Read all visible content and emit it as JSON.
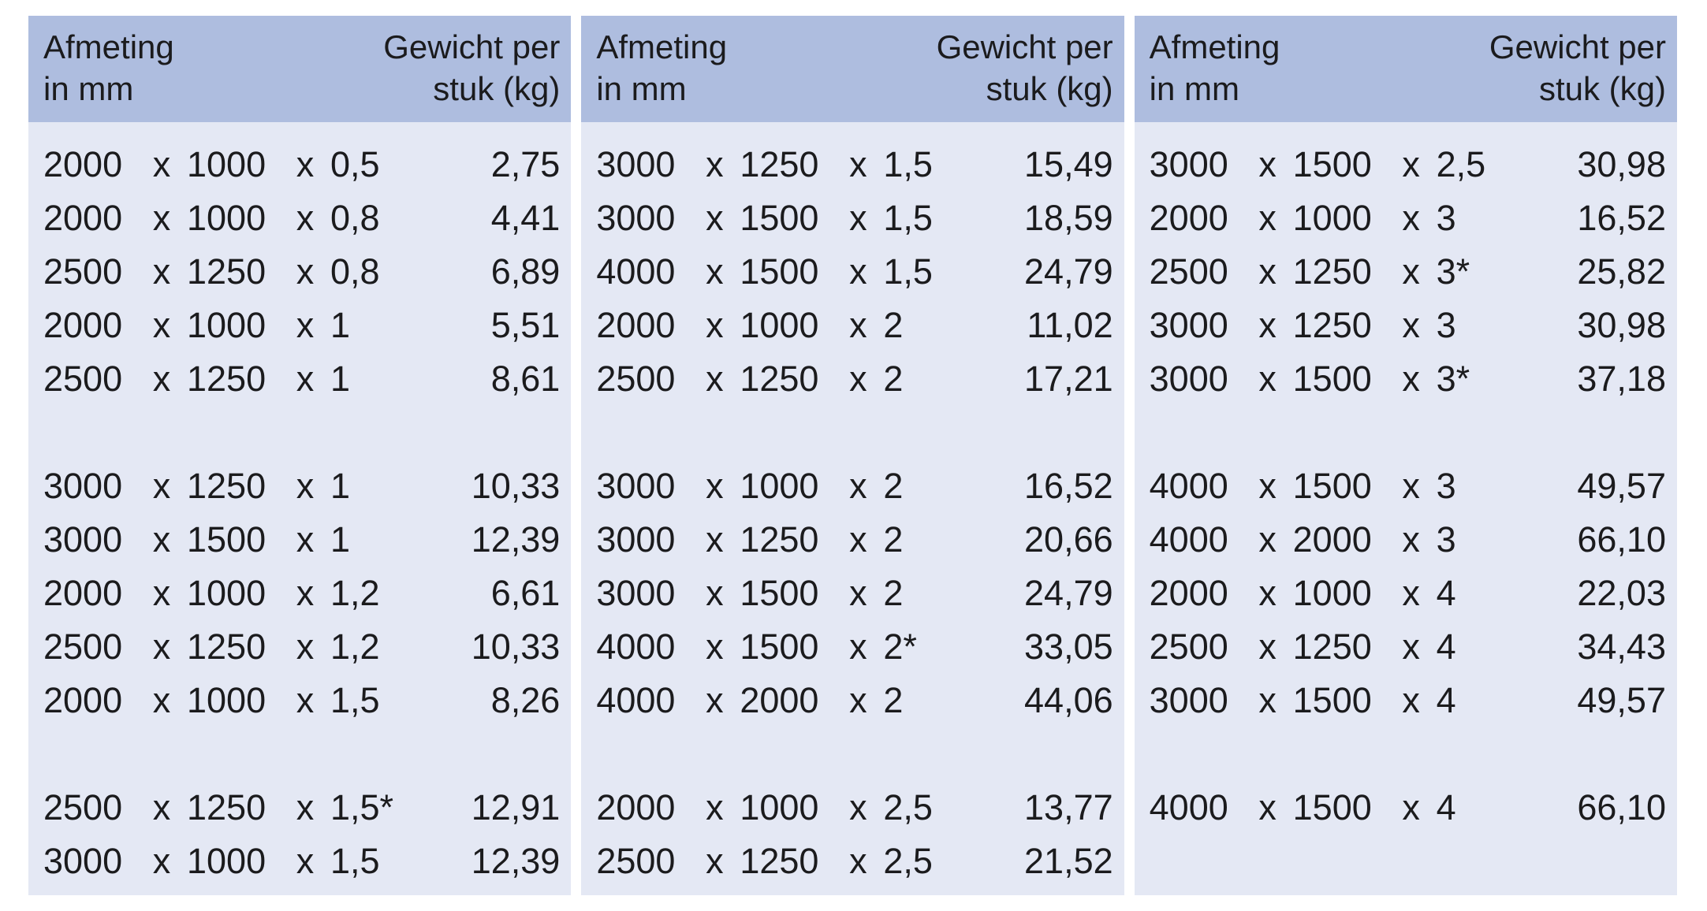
{
  "theme": {
    "header_bg": "#aebddf",
    "body_bg": "#e4e8f4",
    "page_bg": "#ffffff",
    "text_color": "#1b1b1d"
  },
  "table": {
    "header": {
      "dim_line1": "Afmeting",
      "dim_line2": "in mm",
      "weight_line1": "Gewicht per",
      "weight_line2": "stuk (kg)"
    },
    "separator": "x",
    "panels": [
      {
        "rows": [
          {
            "dims": [
              "2000",
              "1000",
              "0,5"
            ],
            "weight": "2,75"
          },
          {
            "dims": [
              "2000",
              "1000",
              "0,8"
            ],
            "weight": "4,41"
          },
          {
            "dims": [
              "2500",
              "1250",
              "0,8"
            ],
            "weight": "6,89"
          },
          {
            "dims": [
              "2000",
              "1000",
              "1"
            ],
            "weight": "5,51"
          },
          {
            "dims": [
              "2500",
              "1250",
              "1"
            ],
            "weight": "8,61"
          },
          null,
          {
            "dims": [
              "3000",
              "1250",
              "1"
            ],
            "weight": "10,33"
          },
          {
            "dims": [
              "3000",
              "1500",
              "1"
            ],
            "weight": "12,39"
          },
          {
            "dims": [
              "2000",
              "1000",
              "1,2"
            ],
            "weight": "6,61"
          },
          {
            "dims": [
              "2500",
              "1250",
              "1,2"
            ],
            "weight": "10,33"
          },
          {
            "dims": [
              "2000",
              "1000",
              "1,5"
            ],
            "weight": "8,26"
          },
          null,
          {
            "dims": [
              "2500",
              "1250",
              "1,5*"
            ],
            "weight": "12,91"
          },
          {
            "dims": [
              "3000",
              "1000",
              "1,5"
            ],
            "weight": "12,39"
          }
        ]
      },
      {
        "rows": [
          {
            "dims": [
              "3000",
              "1250",
              "1,5"
            ],
            "weight": "15,49"
          },
          {
            "dims": [
              "3000",
              "1500",
              "1,5"
            ],
            "weight": "18,59"
          },
          {
            "dims": [
              "4000",
              "1500",
              "1,5"
            ],
            "weight": "24,79"
          },
          {
            "dims": [
              "2000",
              "1000",
              "2"
            ],
            "weight": "11,02"
          },
          {
            "dims": [
              "2500",
              "1250",
              "2"
            ],
            "weight": "17,21"
          },
          null,
          {
            "dims": [
              "3000",
              "1000",
              "2"
            ],
            "weight": "16,52"
          },
          {
            "dims": [
              "3000",
              "1250",
              "2"
            ],
            "weight": "20,66"
          },
          {
            "dims": [
              "3000",
              "1500",
              "2"
            ],
            "weight": "24,79"
          },
          {
            "dims": [
              "4000",
              "1500",
              "2*"
            ],
            "weight": "33,05"
          },
          {
            "dims": [
              "4000",
              "2000",
              "2"
            ],
            "weight": "44,06"
          },
          null,
          {
            "dims": [
              "2000",
              "1000",
              "2,5"
            ],
            "weight": "13,77"
          },
          {
            "dims": [
              "2500",
              "1250",
              "2,5"
            ],
            "weight": "21,52"
          }
        ]
      },
      {
        "rows": [
          {
            "dims": [
              "3000",
              "1500",
              "2,5"
            ],
            "weight": "30,98"
          },
          {
            "dims": [
              "2000",
              "1000",
              "3"
            ],
            "weight": "16,52"
          },
          {
            "dims": [
              "2500",
              "1250",
              "3*"
            ],
            "weight": "25,82"
          },
          {
            "dims": [
              "3000",
              "1250",
              "3"
            ],
            "weight": "30,98"
          },
          {
            "dims": [
              "3000",
              "1500",
              "3*"
            ],
            "weight": "37,18"
          },
          null,
          {
            "dims": [
              "4000",
              "1500",
              "3"
            ],
            "weight": "49,57"
          },
          {
            "dims": [
              "4000",
              "2000",
              "3"
            ],
            "weight": "66,10"
          },
          {
            "dims": [
              "2000",
              "1000",
              "4"
            ],
            "weight": "22,03"
          },
          {
            "dims": [
              "2500",
              "1250",
              "4"
            ],
            "weight": "34,43"
          },
          {
            "dims": [
              "3000",
              "1500",
              "4"
            ],
            "weight": "49,57"
          },
          null,
          {
            "dims": [
              "4000",
              "1500",
              "4"
            ],
            "weight": "66,10"
          },
          null
        ]
      }
    ]
  }
}
